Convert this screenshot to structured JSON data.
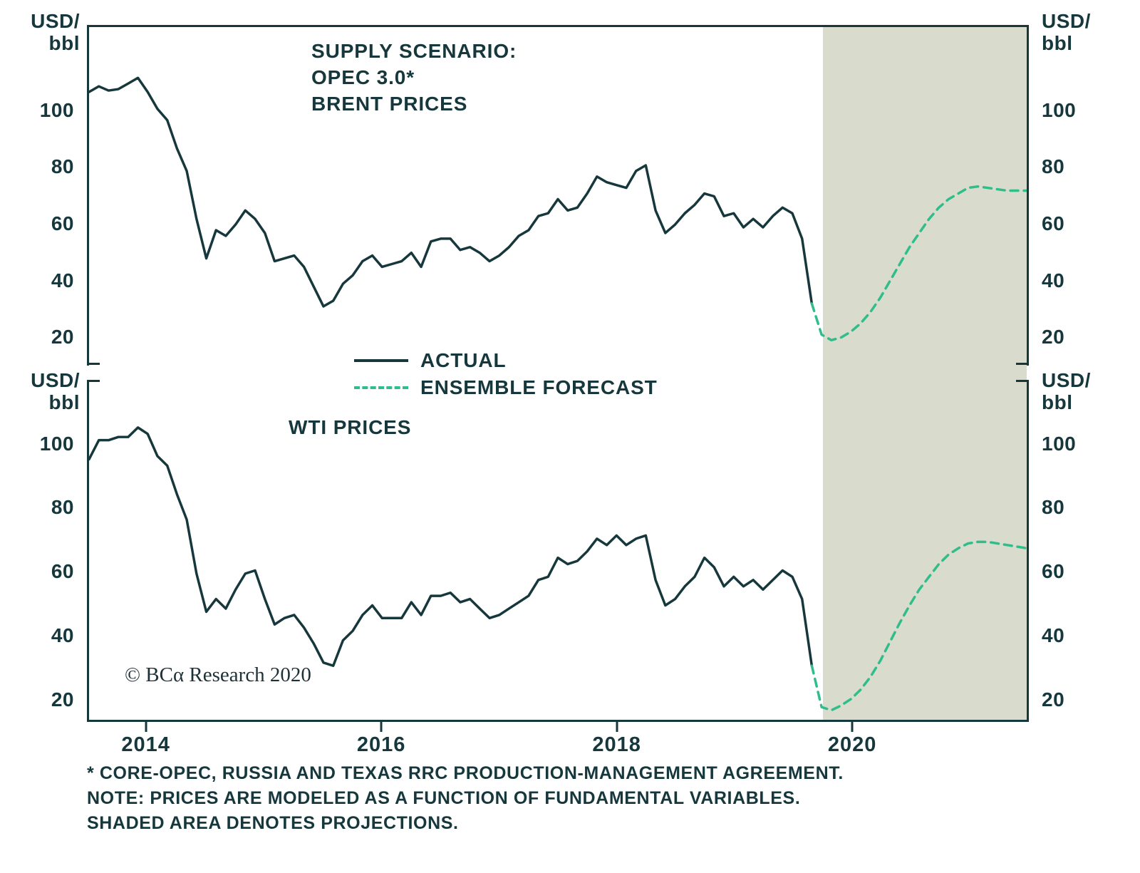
{
  "units": {
    "line1": "USD/",
    "line2": "bbl"
  },
  "legend": {
    "actual": "ACTUAL",
    "forecast": "ENSEMBLE FORECAST"
  },
  "brand": {
    "copyright": "© BCα Research 2020"
  },
  "footnotes": [
    "* CORE-OPEC, RUSSIA AND TEXAS RRC PRODUCTION-MANAGEMENT AGREEMENT.",
    "NOTE: PRICES ARE MODELED AS A FUNCTION OF FUNDAMENTAL VARIABLES.",
    "SHADED AREA DENOTES PROJECTIONS."
  ],
  "colors": {
    "actual": "#16383d",
    "forecast": "#2fbe8a",
    "shade": "#d9dbcd",
    "axis": "#16383d"
  },
  "chart_data": [
    {
      "type": "line",
      "title_lines": [
        "SUPPLY SCENARIO:",
        "OPEC 3.0*",
        "BRENT PRICES"
      ],
      "unit": "USD/bbl",
      "xlim": [
        2014,
        2022
      ],
      "ylim": [
        10,
        130
      ],
      "yticks": [
        100,
        80,
        60,
        40,
        20
      ],
      "show_x_labels": false,
      "shade_start": 2020.25,
      "grid": false,
      "series": [
        {
          "name": "ACTUAL",
          "style": "solid",
          "start": 2014.0,
          "step_months": 1,
          "values": [
            107,
            109,
            107.5,
            108,
            110,
            112,
            107,
            101,
            97,
            87,
            79,
            62,
            48,
            58,
            56,
            60,
            65,
            62,
            57,
            47,
            48,
            49,
            45,
            38,
            31,
            33,
            39,
            42,
            47,
            49,
            45,
            46,
            47,
            50,
            45,
            54,
            55,
            55,
            51,
            52,
            50,
            47,
            49,
            52,
            56,
            58,
            63,
            64,
            69,
            65,
            66,
            71,
            77,
            75,
            74,
            73,
            79,
            81,
            65,
            57,
            60,
            64,
            67,
            71,
            70,
            63,
            64,
            59,
            62,
            59,
            63,
            66,
            64,
            55,
            32
          ]
        },
        {
          "name": "ENSEMBLE FORECAST",
          "style": "dashed",
          "start": 2020.25,
          "step_months": 1,
          "values": [
            21,
            19,
            20,
            22,
            25,
            29,
            34,
            40,
            46,
            52,
            57,
            62,
            66,
            69,
            71,
            73,
            73.5,
            73,
            72.5,
            72,
            72,
            72
          ]
        }
      ]
    },
    {
      "type": "line",
      "title_lines": [
        "WTI PRICES"
      ],
      "unit": "USD/bbl",
      "xlim": [
        2014,
        2022
      ],
      "ylim": [
        13,
        120
      ],
      "yticks": [
        100,
        80,
        60,
        40,
        20
      ],
      "show_x_labels": true,
      "xticks": [
        {
          "pos": 2014.5,
          "label": "2014"
        },
        {
          "pos": 2016.5,
          "label": "2016"
        },
        {
          "pos": 2018.5,
          "label": "2018"
        },
        {
          "pos": 2020.5,
          "label": "2020"
        }
      ],
      "shade_start": 2020.25,
      "grid": false,
      "series": [
        {
          "name": "ACTUAL",
          "style": "solid",
          "start": 2014.0,
          "step_months": 1,
          "values": [
            95,
            101,
            101,
            102,
            102,
            105,
            103,
            96,
            93,
            84,
            76,
            59,
            47,
            51,
            48,
            54,
            59,
            60,
            51,
            43,
            45,
            46,
            42,
            37,
            31,
            30,
            38,
            41,
            46,
            49,
            45,
            45,
            45,
            50,
            46,
            52,
            52,
            53,
            50,
            51,
            48,
            45,
            46,
            48,
            50,
            52,
            57,
            58,
            64,
            62,
            63,
            66,
            70,
            68,
            71,
            68,
            70,
            71,
            57,
            49,
            51,
            55,
            58,
            64,
            61,
            55,
            58,
            55,
            57,
            54,
            57,
            60,
            58,
            51,
            30
          ]
        },
        {
          "name": "ENSEMBLE FORECAST",
          "style": "dashed",
          "start": 2020.25,
          "step_months": 1,
          "values": [
            17,
            16,
            17.5,
            19.5,
            22.5,
            26.5,
            31.5,
            37.5,
            43.5,
            49,
            54,
            58,
            62,
            65,
            67,
            68.5,
            69,
            69,
            68.5,
            68,
            67.5,
            67
          ]
        }
      ]
    }
  ]
}
